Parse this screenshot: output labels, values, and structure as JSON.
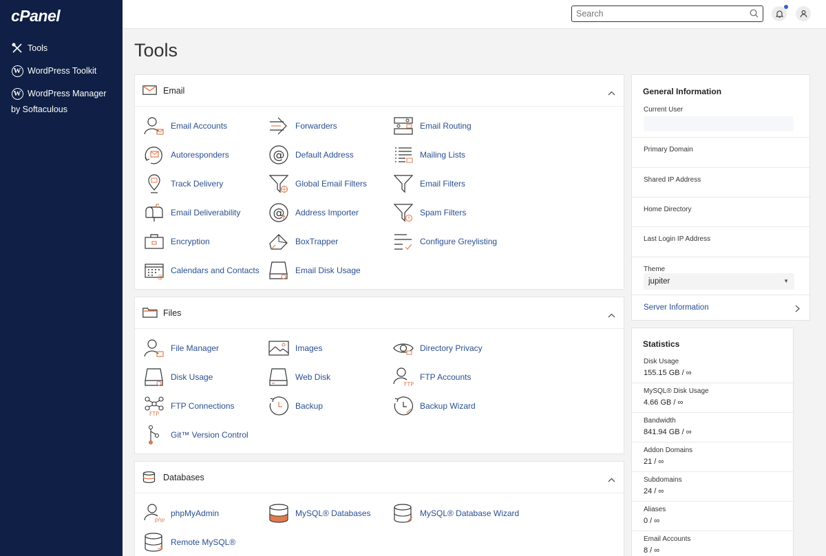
{
  "sidebar": {
    "logo": "cPanel",
    "items": [
      {
        "label": "Tools"
      },
      {
        "label": "WordPress Toolkit"
      },
      {
        "label": "WordPress Manager",
        "sub": "by Softaculous"
      }
    ]
  },
  "header": {
    "search_placeholder": "Search"
  },
  "page_title": "Tools",
  "email": {
    "title": "Email",
    "tools": [
      "Email Accounts",
      "Forwarders",
      "Email Routing",
      "Autoresponders",
      "Default Address",
      "Mailing Lists",
      "Track Delivery",
      "Global Email Filters",
      "Email Filters",
      "Email Deliverability",
      "Address Importer",
      "Spam Filters",
      "Encryption",
      "BoxTrapper",
      "Configure Greylisting",
      "Calendars and Contacts",
      "Email Disk Usage"
    ]
  },
  "files": {
    "title": "Files",
    "tools": [
      "File Manager",
      "Images",
      "Directory Privacy",
      "Disk Usage",
      "Web Disk",
      "FTP Accounts",
      "FTP Connections",
      "Backup",
      "Backup Wizard",
      "Git™ Version Control"
    ]
  },
  "databases": {
    "title": "Databases",
    "tools": [
      "phpMyAdmin",
      "MySQL® Databases",
      "MySQL® Database Wizard",
      "Remote MySQL®"
    ]
  },
  "general_info": {
    "title": "General Information",
    "current_user_label": "Current User",
    "primary_domain_label": "Primary Domain",
    "shared_ip_label": "Shared IP Address",
    "home_dir_label": "Home Directory",
    "last_login_label": "Last Login IP Address",
    "theme_label": "Theme",
    "theme_value": "jupiter",
    "server_info_label": "Server Information"
  },
  "statistics": {
    "title": "Statistics",
    "items": [
      {
        "label": "Disk Usage",
        "value": "155.15 GB / ∞"
      },
      {
        "label": "MySQL® Disk Usage",
        "value": "4.66 GB / ∞"
      },
      {
        "label": "Bandwidth",
        "value": "841.94 GB / ∞"
      },
      {
        "label": "Addon Domains",
        "value": "21 / ∞"
      },
      {
        "label": "Subdomains",
        "value": "24 / ∞"
      },
      {
        "label": "Aliases",
        "value": "0 / ∞"
      },
      {
        "label": "Email Accounts",
        "value": "8 / ∞"
      }
    ]
  },
  "colors": {
    "sidebar": "#0f1f45",
    "link": "#2a4f8f",
    "accent": "#e07a4f"
  }
}
